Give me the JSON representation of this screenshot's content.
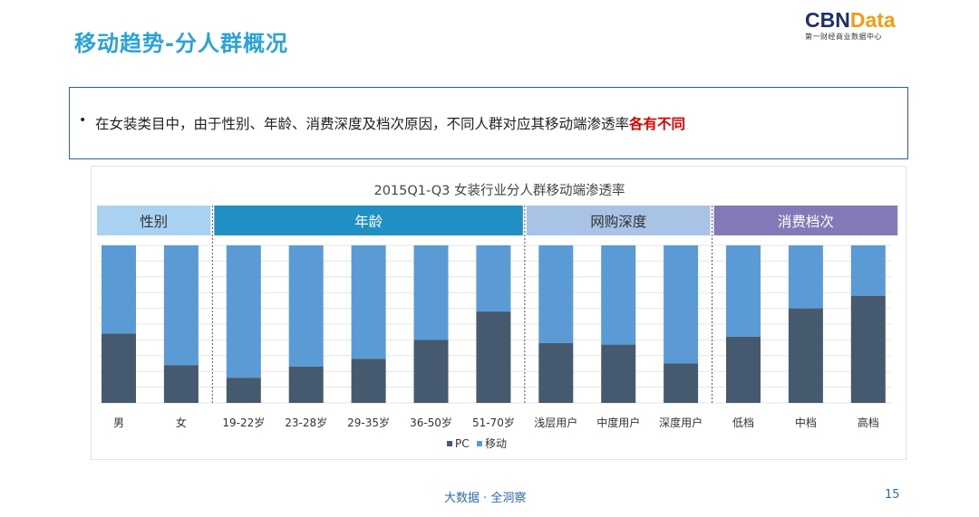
{
  "page": {
    "title": "移动趋势-分人群概况",
    "logo_main_a": "CBN",
    "logo_main_b": "Data",
    "logo_sub": "第一财经商业数据中心",
    "note_bullet": "•",
    "note_text": "在女装类目中，由于性别、年龄、消费深度及档次原因，不同人群对应其移动端渗透率",
    "note_emphasis": "各有不同",
    "footer": "大数据 · 全洞察",
    "page_number": "15"
  },
  "colors": {
    "title": "#29a3d8",
    "pc": "#455a6e",
    "mobile": "#5b9bd5",
    "group_gender": "#a9d1f1",
    "group_age": "#1f8fc4",
    "group_depth": "#a8c3e6",
    "group_tier": "#8179b8"
  },
  "chart_data": {
    "type": "bar",
    "stacked": true,
    "normalized": true,
    "title": "2015Q1-Q3 女装行业分人群移动端渗透率",
    "groups": [
      {
        "name": "性别",
        "categories": [
          "男",
          "女"
        ]
      },
      {
        "name": "年龄",
        "categories": [
          "19-22岁",
          "23-28岁",
          "29-35岁",
          "36-50岁",
          "51-70岁"
        ]
      },
      {
        "name": "网购深度",
        "categories": [
          "浅层用户",
          "中度用户",
          "深度用户"
        ]
      },
      {
        "name": "消费档次",
        "categories": [
          "低档",
          "中档",
          "高档"
        ]
      }
    ],
    "categories": [
      "男",
      "女",
      "19-22岁",
      "23-28岁",
      "29-35岁",
      "36-50岁",
      "51-70岁",
      "浅层用户",
      "中度用户",
      "深度用户",
      "低档",
      "中档",
      "高档"
    ],
    "series": [
      {
        "name": "PC",
        "values": [
          0.44,
          0.24,
          0.16,
          0.23,
          0.28,
          0.4,
          0.58,
          0.38,
          0.37,
          0.25,
          0.42,
          0.6,
          0.68
        ]
      },
      {
        "name": "移动",
        "values": [
          0.56,
          0.76,
          0.84,
          0.77,
          0.72,
          0.6,
          0.42,
          0.62,
          0.63,
          0.75,
          0.58,
          0.4,
          0.32
        ]
      }
    ],
    "ylim": [
      0,
      1
    ],
    "grid": true,
    "legend": "bottom"
  }
}
